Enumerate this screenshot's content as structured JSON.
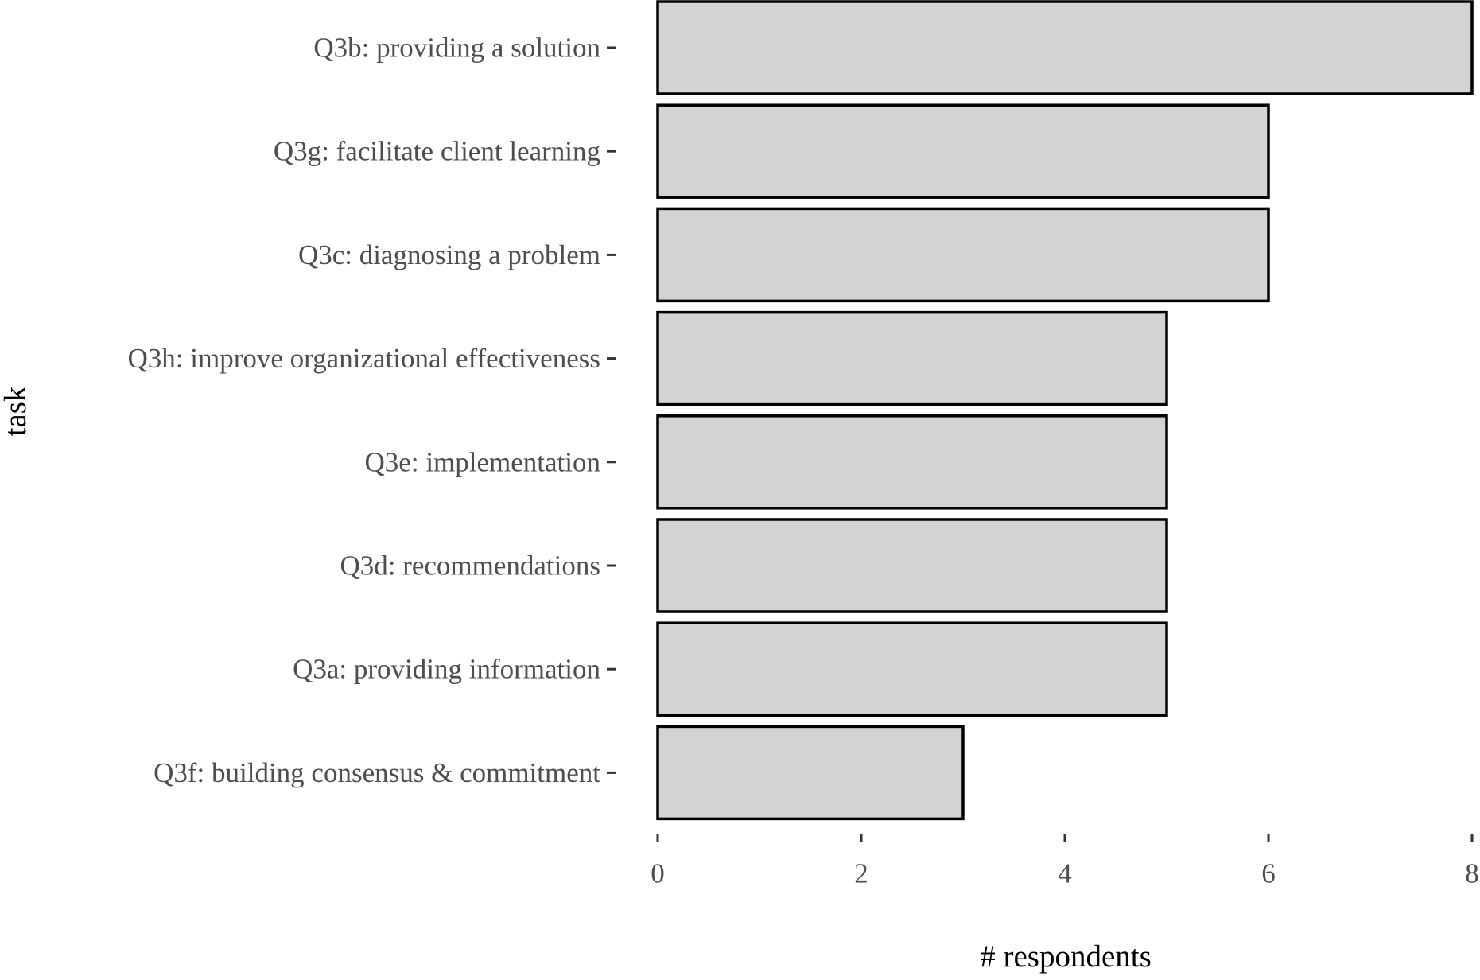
{
  "chart_data": {
    "type": "bar",
    "orientation": "horizontal",
    "categories": [
      "Q3b: providing a solution",
      "Q3g: facilitate client learning",
      "Q3c: diagnosing a problem",
      "Q3h: improve organizational effectiveness",
      "Q3e: implementation",
      "Q3d: recommendations",
      "Q3a: providing information",
      "Q3f: building consensus & commitment"
    ],
    "values": [
      8,
      6,
      6,
      5,
      5,
      5,
      5,
      3
    ],
    "xlabel": "# respondents",
    "ylabel": "task",
    "xlim": [
      0,
      8
    ],
    "xticks": [
      0,
      2,
      4,
      6,
      8
    ],
    "xtick_labels": [
      "0",
      "2",
      "4",
      "6",
      "8"
    ],
    "grid": false,
    "bar_fill": "#d3d3d3",
    "bar_stroke": "#000000",
    "tick_color": "#4d4d4d",
    "background": "#ffffff"
  }
}
